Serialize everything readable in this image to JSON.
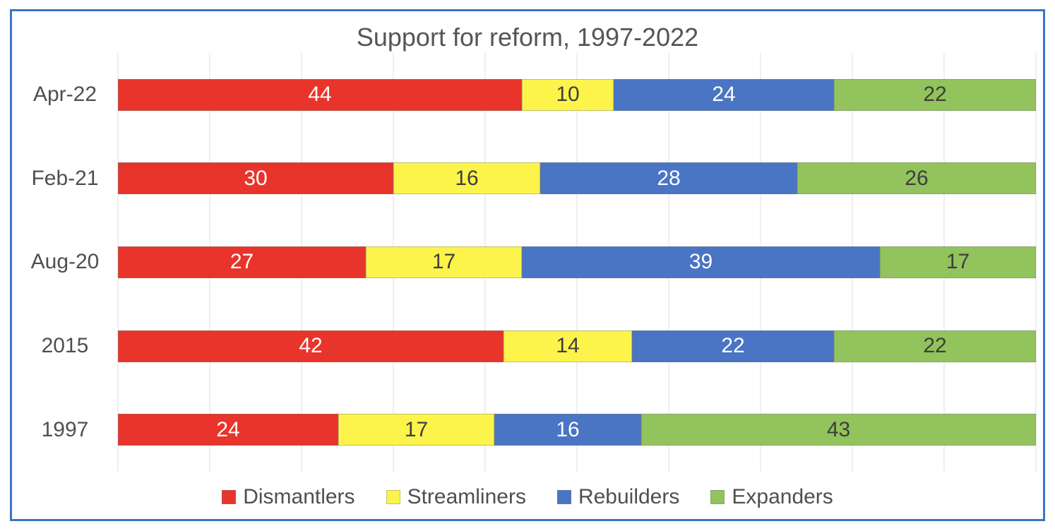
{
  "frame": {
    "border_color": "#3B76C1",
    "background": "#FFFFFF"
  },
  "chart_data": {
    "type": "bar",
    "variant": "stacked",
    "orientation": "horizontal",
    "title": "Support for reform, 1997-2022",
    "categories": [
      "Apr-22",
      "Feb-21",
      "Aug-20",
      "2015",
      "1997"
    ],
    "series": [
      {
        "name": "Dismantlers",
        "color": "#E8342B",
        "label_color": "#FFFFFF",
        "values": [
          44,
          30,
          27,
          42,
          24
        ]
      },
      {
        "name": "Streamliners",
        "color": "#FCF44B",
        "label_color": "#3E3E3E",
        "values": [
          10,
          16,
          17,
          14,
          17
        ]
      },
      {
        "name": "Rebuilders",
        "color": "#4A74C4",
        "label_color": "#FFFFFF",
        "values": [
          24,
          28,
          39,
          22,
          16
        ]
      },
      {
        "name": "Expanders",
        "color": "#92C35C",
        "label_color": "#3E3E3E",
        "values": [
          22,
          26,
          17,
          22,
          43
        ]
      }
    ],
    "x_range": [
      0,
      100
    ],
    "gridlines": {
      "interval": 10,
      "color": "#EFEFEF",
      "orientation": "vertical"
    },
    "legend_position": "bottom",
    "data_labels": "inside-center"
  }
}
